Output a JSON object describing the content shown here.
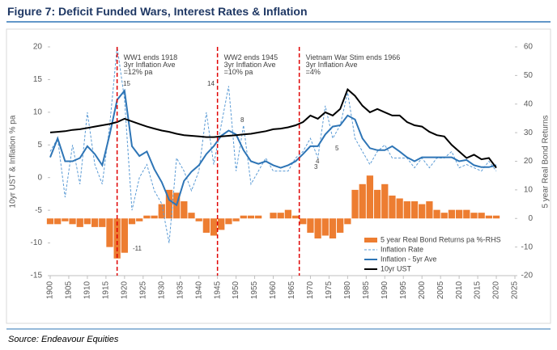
{
  "chart_data": {
    "type": "combo",
    "title": "Figure 7:  Deficit Funded Wars, Interest Rates & Inflation",
    "source": "Source: Endeavour Equities",
    "ylabel": "10yr UST & Inflation % pa",
    "y2label": "5 year Real Bond Returns",
    "xlim": [
      1900,
      2025
    ],
    "xticks": [
      1900,
      1905,
      1910,
      1915,
      1920,
      1925,
      1930,
      1935,
      1940,
      1945,
      1950,
      1955,
      1960,
      1965,
      1970,
      1975,
      1980,
      1985,
      1990,
      1995,
      2000,
      2005,
      2010,
      2015,
      2020,
      2025
    ],
    "ylim": [
      -15,
      20
    ],
    "yticks": [
      -15,
      -10,
      -5,
      0,
      5,
      10,
      15,
      20
    ],
    "y2lim": [
      -20,
      60
    ],
    "y2ticks": [
      -20,
      -10,
      0,
      10,
      20,
      30,
      40,
      50,
      60
    ],
    "legend": "lower right",
    "x": [
      1900,
      1902,
      1904,
      1906,
      1908,
      1910,
      1912,
      1914,
      1916,
      1918,
      1920,
      1922,
      1924,
      1926,
      1928,
      1930,
      1932,
      1934,
      1936,
      1938,
      1940,
      1942,
      1944,
      1946,
      1948,
      1950,
      1952,
      1954,
      1956,
      1958,
      1960,
      1962,
      1964,
      1966,
      1968,
      1970,
      1972,
      1974,
      1976,
      1978,
      1980,
      1982,
      1984,
      1986,
      1988,
      1990,
      1992,
      1994,
      1996,
      1998,
      2000,
      2002,
      2004,
      2006,
      2008,
      2010,
      2012,
      2014,
      2016,
      2018,
      2020
    ],
    "series": [
      {
        "name": "5 year Real Bond Returns pa %-RHS",
        "kind": "bar",
        "axis": "y2",
        "color": "#ed7d31",
        "values": [
          -2,
          -2,
          -1,
          -2,
          -3,
          -2,
          -3,
          -3,
          -10,
          -14,
          -12,
          -2,
          -1,
          1,
          1,
          5,
          10,
          9,
          6,
          2,
          -1,
          -5,
          -6,
          -4,
          -2,
          -1,
          1,
          1,
          1,
          0,
          2,
          2,
          3,
          1,
          -2,
          -5,
          -7,
          -6,
          -7,
          -5,
          -2,
          10,
          12,
          15,
          10,
          12,
          8,
          7,
          6,
          6,
          5,
          6,
          3,
          2,
          3,
          3,
          3,
          2,
          2,
          1,
          1
        ]
      },
      {
        "name": "Inflation Rate",
        "kind": "dashed",
        "color": "#5b9bd5",
        "values": [
          4,
          6,
          -3,
          5,
          -1,
          10,
          2,
          -1,
          8,
          20,
          12,
          -5,
          0,
          2,
          -2,
          -4,
          -10,
          3,
          1,
          -2,
          1,
          10,
          2,
          8,
          14,
          1,
          8,
          -1,
          1,
          3,
          1,
          1,
          1,
          3,
          4,
          6,
          3,
          11,
          6,
          8,
          13,
          6,
          4,
          2,
          4,
          5,
          3,
          3,
          3,
          1.5,
          3,
          1.5,
          3,
          3,
          4,
          1.5,
          2,
          1.5,
          1,
          2.5,
          1
        ]
      },
      {
        "name": "Inflation - 5yr Ave",
        "kind": "line",
        "color": "#2e75b6",
        "values": [
          3.1,
          6,
          2.5,
          2.5,
          3,
          4.8,
          3.6,
          1.9,
          6.6,
          11.9,
          13.3,
          4.8,
          3.3,
          4,
          1.3,
          -0.7,
          -3.4,
          -4.2,
          -0.5,
          0.9,
          1.9,
          3.6,
          4.8,
          6.4,
          7.2,
          6.6,
          4.2,
          2.5,
          2.1,
          2.5,
          1.9,
          1.5,
          1.9,
          2.5,
          3.6,
          4.8,
          4.8,
          6.6,
          7.8,
          8,
          9.5,
          8.9,
          6,
          4.5,
          4.2,
          4.2,
          4.8,
          4,
          3.1,
          2.5,
          3.1,
          3.1,
          3.1,
          3.1,
          3.1,
          2.5,
          2.7,
          1.9,
          1.6,
          1.6,
          1.9
        ]
      },
      {
        "name": "10yr UST",
        "kind": "line",
        "color": "#000000",
        "values": [
          6.9,
          7,
          7.1,
          7.3,
          7.4,
          7.6,
          7.8,
          8,
          8.2,
          8.5,
          9,
          8.6,
          8.2,
          7.8,
          7.5,
          7.2,
          7,
          6.7,
          6.5,
          6.4,
          6.3,
          6.2,
          6.2,
          6.3,
          6.4,
          6.5,
          6.6,
          6.7,
          6.9,
          7.1,
          7.4,
          7.5,
          7.7,
          8,
          8.5,
          9.5,
          9,
          10,
          9.5,
          10.5,
          13.5,
          12.5,
          11,
          10,
          10.5,
          10,
          9.5,
          9.5,
          8.5,
          8,
          7.8,
          7,
          6.5,
          6.3,
          5,
          4,
          3,
          3.5,
          2.8,
          3,
          1.5
        ]
      }
    ],
    "vlines": [
      {
        "x": 1918,
        "color": "#e00000",
        "lines": [
          "WW1 ends 1918",
          "3yr Inflation Ave",
          "=12% pa"
        ]
      },
      {
        "x": 1945,
        "color": "#e00000",
        "lines": [
          "WW2 ends 1945",
          "3yr Inflation  Ave",
          "=10% pa"
        ]
      },
      {
        "x": 1967,
        "color": "#e00000",
        "lines": [
          "Vietnam War Stim ends 1966",
          "3yr Inflation Ave",
          "=4%"
        ]
      }
    ],
    "point_labels": [
      "15",
      "14",
      "8",
      "5",
      "4",
      "3",
      "-11"
    ]
  }
}
